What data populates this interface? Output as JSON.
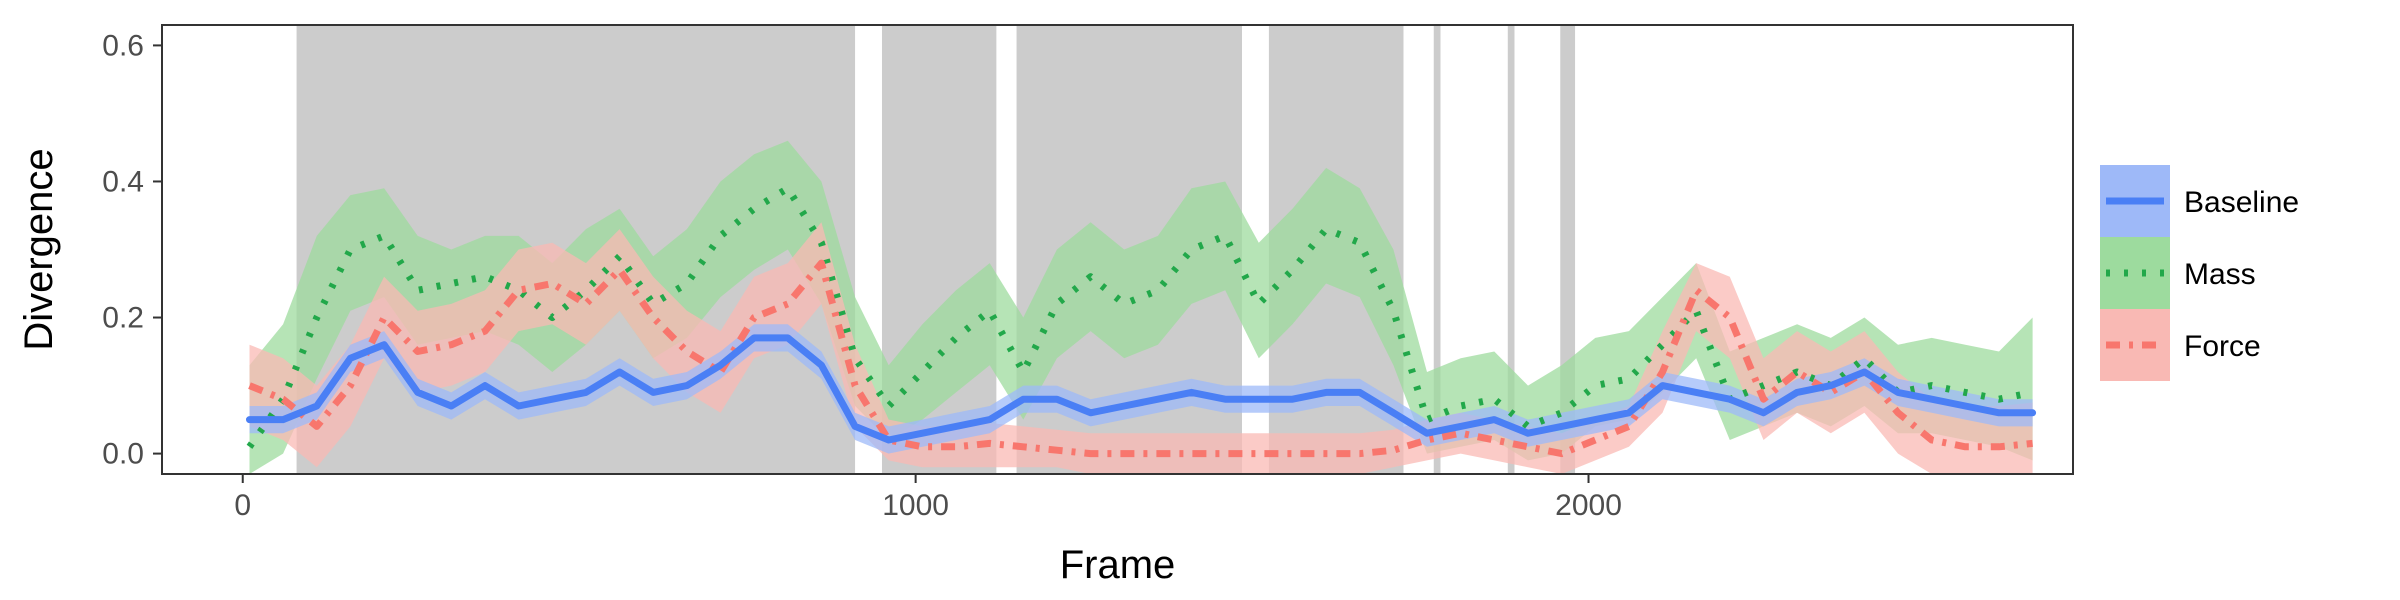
{
  "chart_data": {
    "type": "line",
    "title": "",
    "xlabel": "Frame",
    "ylabel": "Divergence",
    "xlim": [
      -120,
      2720
    ],
    "ylim": [
      -0.03,
      0.63
    ],
    "xticks": [
      0,
      1000,
      2000
    ],
    "xtick_labels": [
      "0",
      "1000",
      "2000"
    ],
    "yticks": [
      0.0,
      0.2,
      0.4,
      0.6
    ],
    "ytick_labels": [
      "0.0",
      "0.2",
      "0.4",
      "0.6"
    ],
    "grid": false,
    "legend_position": "right",
    "shaded_regions": [
      [
        80,
        910
      ],
      [
        950,
        1120
      ],
      [
        1150,
        1485
      ],
      [
        1525,
        1725
      ],
      [
        1770,
        1780
      ],
      [
        1880,
        1890
      ],
      [
        1958,
        1980
      ]
    ],
    "series": [
      {
        "name": "Baseline",
        "color": "#4A7FF5",
        "ribbon_color": "#9EB9F8",
        "line_style": "solid",
        "x": [
          10,
          60,
          110,
          160,
          210,
          260,
          310,
          360,
          410,
          460,
          510,
          560,
          610,
          660,
          710,
          760,
          810,
          860,
          910,
          960,
          1010,
          1060,
          1110,
          1160,
          1210,
          1260,
          1310,
          1360,
          1410,
          1460,
          1510,
          1560,
          1610,
          1660,
          1710,
          1760,
          1810,
          1860,
          1910,
          1960,
          2010,
          2060,
          2110,
          2160,
          2210,
          2260,
          2310,
          2360,
          2410,
          2460,
          2510,
          2560,
          2610,
          2660
        ],
        "y": [
          0.05,
          0.05,
          0.07,
          0.14,
          0.16,
          0.09,
          0.07,
          0.1,
          0.07,
          0.08,
          0.09,
          0.12,
          0.09,
          0.1,
          0.13,
          0.17,
          0.17,
          0.13,
          0.04,
          0.02,
          0.03,
          0.04,
          0.05,
          0.08,
          0.08,
          0.06,
          0.07,
          0.08,
          0.09,
          0.08,
          0.08,
          0.08,
          0.09,
          0.09,
          0.06,
          0.03,
          0.04,
          0.05,
          0.03,
          0.04,
          0.05,
          0.06,
          0.1,
          0.09,
          0.08,
          0.06,
          0.09,
          0.1,
          0.12,
          0.09,
          0.08,
          0.07,
          0.06,
          0.06
        ],
        "lower": [
          0.03,
          0.03,
          0.05,
          0.12,
          0.14,
          0.07,
          0.05,
          0.08,
          0.05,
          0.06,
          0.07,
          0.1,
          0.07,
          0.08,
          0.11,
          0.15,
          0.15,
          0.11,
          0.02,
          0.0,
          0.01,
          0.02,
          0.03,
          0.06,
          0.06,
          0.04,
          0.05,
          0.06,
          0.07,
          0.06,
          0.06,
          0.06,
          0.07,
          0.07,
          0.04,
          0.01,
          0.02,
          0.03,
          0.01,
          0.02,
          0.03,
          0.04,
          0.08,
          0.07,
          0.06,
          0.04,
          0.07,
          0.08,
          0.1,
          0.07,
          0.06,
          0.05,
          0.04,
          0.04
        ],
        "upper": [
          0.07,
          0.07,
          0.09,
          0.16,
          0.18,
          0.11,
          0.09,
          0.12,
          0.09,
          0.1,
          0.11,
          0.14,
          0.11,
          0.12,
          0.15,
          0.19,
          0.19,
          0.15,
          0.06,
          0.04,
          0.05,
          0.06,
          0.07,
          0.1,
          0.1,
          0.08,
          0.09,
          0.1,
          0.11,
          0.1,
          0.1,
          0.1,
          0.11,
          0.11,
          0.08,
          0.05,
          0.06,
          0.07,
          0.05,
          0.06,
          0.07,
          0.08,
          0.12,
          0.11,
          0.1,
          0.08,
          0.11,
          0.12,
          0.14,
          0.11,
          0.1,
          0.09,
          0.08,
          0.08
        ]
      },
      {
        "name": "Mass",
        "color": "#22A84A",
        "ribbon_color": "#9DDB9E",
        "line_style": "dotted",
        "x": [
          10,
          60,
          110,
          160,
          210,
          260,
          310,
          360,
          410,
          460,
          510,
          560,
          610,
          660,
          710,
          760,
          810,
          860,
          910,
          960,
          1010,
          1060,
          1110,
          1160,
          1210,
          1260,
          1310,
          1360,
          1410,
          1460,
          1510,
          1560,
          1610,
          1660,
          1710,
          1760,
          1810,
          1860,
          1910,
          1960,
          2010,
          2060,
          2110,
          2160,
          2210,
          2260,
          2310,
          2360,
          2410,
          2460,
          2510,
          2560,
          2610,
          2660
        ],
        "y": [
          0.01,
          0.08,
          0.2,
          0.3,
          0.32,
          0.24,
          0.25,
          0.26,
          0.24,
          0.2,
          0.24,
          0.29,
          0.22,
          0.25,
          0.32,
          0.36,
          0.39,
          0.31,
          0.14,
          0.07,
          0.12,
          0.17,
          0.21,
          0.12,
          0.22,
          0.26,
          0.22,
          0.24,
          0.3,
          0.32,
          0.22,
          0.27,
          0.33,
          0.31,
          0.21,
          0.05,
          0.07,
          0.08,
          0.04,
          0.06,
          0.1,
          0.11,
          0.16,
          0.21,
          0.08,
          0.1,
          0.12,
          0.1,
          0.14,
          0.09,
          0.1,
          0.09,
          0.08,
          0.09
        ],
        "lower": [
          -0.03,
          0.0,
          0.11,
          0.21,
          0.23,
          0.16,
          0.17,
          0.18,
          0.16,
          0.12,
          0.16,
          0.21,
          0.14,
          0.17,
          0.23,
          0.27,
          0.3,
          0.22,
          0.07,
          0.02,
          0.05,
          0.09,
          0.13,
          0.05,
          0.14,
          0.18,
          0.14,
          0.16,
          0.22,
          0.24,
          0.14,
          0.19,
          0.25,
          0.23,
          0.13,
          0.0,
          0.01,
          0.02,
          -0.01,
          0.0,
          0.04,
          0.05,
          0.09,
          0.14,
          0.02,
          0.04,
          0.06,
          0.04,
          0.07,
          0.03,
          0.03,
          0.02,
          0.01,
          -0.01
        ],
        "upper": [
          0.13,
          0.19,
          0.32,
          0.38,
          0.39,
          0.32,
          0.3,
          0.32,
          0.32,
          0.28,
          0.33,
          0.36,
          0.29,
          0.33,
          0.4,
          0.44,
          0.46,
          0.4,
          0.23,
          0.13,
          0.19,
          0.24,
          0.28,
          0.2,
          0.3,
          0.34,
          0.3,
          0.32,
          0.39,
          0.4,
          0.31,
          0.36,
          0.42,
          0.39,
          0.3,
          0.12,
          0.14,
          0.15,
          0.1,
          0.13,
          0.17,
          0.18,
          0.23,
          0.28,
          0.15,
          0.17,
          0.19,
          0.17,
          0.2,
          0.16,
          0.17,
          0.16,
          0.15,
          0.2
        ]
      },
      {
        "name": "Force",
        "color": "#F8766D",
        "ribbon_color": "#F9B9B4",
        "line_style": "dashdot",
        "x": [
          10,
          60,
          110,
          160,
          210,
          260,
          310,
          360,
          410,
          460,
          510,
          560,
          610,
          660,
          710,
          760,
          810,
          860,
          910,
          960,
          1010,
          1060,
          1110,
          1160,
          1210,
          1260,
          1310,
          1360,
          1410,
          1460,
          1510,
          1560,
          1610,
          1660,
          1710,
          1760,
          1810,
          1860,
          1910,
          1960,
          2010,
          2060,
          2110,
          2160,
          2210,
          2260,
          2310,
          2360,
          2410,
          2460,
          2510,
          2560,
          2610,
          2660
        ],
        "y": [
          0.1,
          0.08,
          0.04,
          0.1,
          0.2,
          0.15,
          0.16,
          0.18,
          0.24,
          0.25,
          0.22,
          0.27,
          0.2,
          0.15,
          0.12,
          0.2,
          0.22,
          0.28,
          0.1,
          0.02,
          0.01,
          0.01,
          0.015,
          0.01,
          0.005,
          0.0,
          0.0,
          0.0,
          0.0,
          0.0,
          0.0,
          0.0,
          0.0,
          0.0,
          0.005,
          0.02,
          0.03,
          0.02,
          0.01,
          0.0,
          0.02,
          0.04,
          0.12,
          0.24,
          0.2,
          0.08,
          0.12,
          0.09,
          0.12,
          0.06,
          0.02,
          0.01,
          0.01,
          0.015
        ],
        "lower": [
          0.04,
          0.02,
          -0.02,
          0.04,
          0.14,
          0.09,
          0.1,
          0.12,
          0.18,
          0.19,
          0.16,
          0.21,
          0.14,
          0.09,
          0.06,
          0.14,
          0.16,
          0.22,
          0.04,
          -0.01,
          -0.02,
          -0.02,
          -0.02,
          -0.02,
          -0.02,
          -0.03,
          -0.03,
          -0.03,
          -0.03,
          -0.03,
          -0.03,
          -0.03,
          -0.03,
          -0.03,
          -0.02,
          -0.01,
          0.0,
          -0.01,
          -0.02,
          -0.03,
          -0.01,
          0.01,
          0.06,
          0.18,
          0.14,
          0.02,
          0.06,
          0.03,
          0.06,
          0.0,
          -0.03,
          -0.03,
          -0.03,
          -0.03
        ],
        "upper": [
          0.16,
          0.14,
          0.1,
          0.16,
          0.26,
          0.21,
          0.22,
          0.24,
          0.3,
          0.31,
          0.28,
          0.33,
          0.26,
          0.21,
          0.18,
          0.26,
          0.28,
          0.34,
          0.16,
          0.05,
          0.04,
          0.04,
          0.045,
          0.04,
          0.035,
          0.03,
          0.03,
          0.03,
          0.03,
          0.03,
          0.03,
          0.03,
          0.03,
          0.03,
          0.035,
          0.05,
          0.06,
          0.05,
          0.04,
          0.03,
          0.05,
          0.07,
          0.18,
          0.28,
          0.26,
          0.14,
          0.18,
          0.15,
          0.18,
          0.12,
          0.08,
          0.07,
          0.07,
          0.075
        ]
      }
    ]
  }
}
